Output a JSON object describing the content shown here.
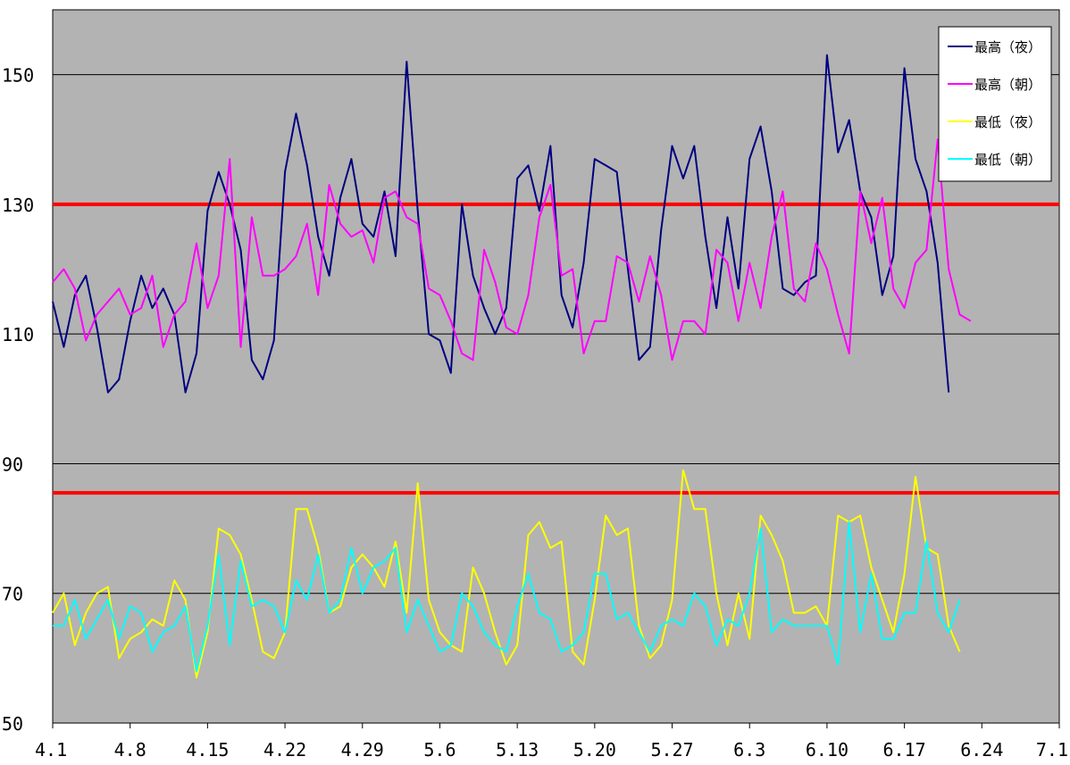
{
  "chart_data": {
    "type": "line",
    "title": "",
    "xlabel": "",
    "ylabel": "",
    "ylim": [
      50,
      160
    ],
    "xlim": [
      0,
      91
    ],
    "yticks": [
      50,
      70,
      90,
      110,
      130,
      150
    ],
    "xticks": [
      {
        "x": 0,
        "label": "4.1"
      },
      {
        "x": 7,
        "label": "4.8"
      },
      {
        "x": 14,
        "label": "4.15"
      },
      {
        "x": 21,
        "label": "4.22"
      },
      {
        "x": 28,
        "label": "4.29"
      },
      {
        "x": 35,
        "label": "5.6"
      },
      {
        "x": 42,
        "label": "5.13"
      },
      {
        "x": 49,
        "label": "5.20"
      },
      {
        "x": 56,
        "label": "5.27"
      },
      {
        "x": 63,
        "label": "6.3"
      },
      {
        "x": 70,
        "label": "6.10"
      },
      {
        "x": 77,
        "label": "6.17"
      },
      {
        "x": 84,
        "label": "6.24"
      },
      {
        "x": 91,
        "label": "7.1"
      }
    ],
    "grid": true,
    "legend_position": "top-right",
    "reference_lines": [
      {
        "y": 130,
        "color": "#ff0000"
      },
      {
        "y": 85.5,
        "color": "#ff0000"
      }
    ],
    "series": [
      {
        "name": "最高（夜）",
        "color": "#000080",
        "values": [
          115,
          108,
          116,
          119,
          111,
          101,
          103,
          112,
          119,
          114,
          117,
          113,
          101,
          107,
          129,
          135,
          130,
          123,
          106,
          103,
          109,
          135,
          144,
          136,
          125,
          119,
          131,
          137,
          127,
          125,
          132,
          122,
          152,
          129,
          110,
          109,
          104,
          130,
          119,
          114,
          110,
          114,
          134,
          136,
          129,
          139,
          116,
          111,
          121,
          137,
          136,
          135,
          120,
          106,
          108,
          126,
          139,
          134,
          139,
          125,
          114,
          128,
          117,
          137,
          142,
          132,
          117,
          116,
          118,
          119,
          153,
          138,
          143,
          132,
          128,
          116,
          122,
          151,
          137,
          132,
          121,
          101
        ]
      },
      {
        "name": "最高（朝）",
        "color": "#ff00ff",
        "values": [
          118,
          120,
          117,
          109,
          113,
          115,
          117,
          113,
          114,
          119,
          108,
          113,
          115,
          124,
          114,
          119,
          137,
          108,
          128,
          119,
          119,
          120,
          122,
          127,
          116,
          133,
          127,
          125,
          126,
          121,
          131,
          132,
          128,
          127,
          117,
          116,
          112,
          107,
          106,
          123,
          118,
          111,
          110,
          116,
          128,
          133,
          119,
          120,
          107,
          112,
          112,
          122,
          121,
          115,
          122,
          116,
          106,
          112,
          112,
          110,
          123,
          121,
          112,
          121,
          114,
          125,
          132,
          117,
          115,
          124,
          120,
          113,
          107,
          132,
          124,
          131,
          117,
          114,
          121,
          123,
          140,
          120,
          113,
          112
        ]
      },
      {
        "name": "最低（夜）",
        "color": "#ffff00",
        "values": [
          67,
          70,
          62,
          67,
          70,
          71,
          60,
          63,
          64,
          66,
          65,
          72,
          69,
          57,
          64,
          80,
          79,
          76,
          69,
          61,
          60,
          64,
          83,
          83,
          77,
          67,
          68,
          74,
          76,
          74,
          71,
          78,
          67,
          87,
          69,
          64,
          62,
          61,
          74,
          70,
          64,
          59,
          62,
          79,
          81,
          77,
          78,
          61,
          59,
          69,
          82,
          79,
          80,
          65,
          60,
          62,
          69,
          89,
          83,
          83,
          70,
          62,
          70,
          63,
          82,
          79,
          75,
          67,
          67,
          68,
          65,
          82,
          81,
          82,
          74,
          69,
          64,
          73,
          88,
          77,
          76,
          65,
          61
        ]
      },
      {
        "name": "最低（朝）",
        "color": "#00ffff",
        "values": [
          65,
          65,
          69,
          63,
          66,
          69,
          63,
          68,
          67,
          61,
          64,
          65,
          68,
          58,
          65,
          76,
          62,
          75,
          68,
          69,
          68,
          64,
          72,
          69,
          76,
          67,
          69,
          77,
          70,
          74,
          75,
          77,
          64,
          69,
          65,
          61,
          62,
          70,
          68,
          64,
          62,
          61,
          68,
          73,
          67,
          66,
          61,
          62,
          64,
          73,
          73,
          66,
          67,
          64,
          61,
          65,
          66,
          65,
          70,
          68,
          62,
          66,
          65,
          70,
          80,
          64,
          66,
          65,
          65,
          65,
          65,
          59,
          81,
          64,
          73,
          63,
          63,
          67,
          67,
          78,
          67,
          64,
          69
        ]
      }
    ]
  }
}
